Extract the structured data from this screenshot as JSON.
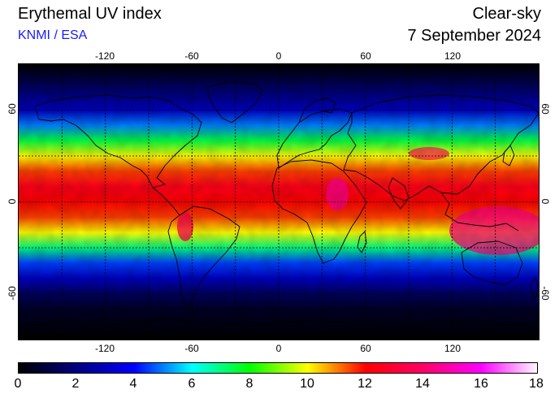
{
  "header": {
    "title": "Erythemal UV index",
    "subtitle": "KNMI / ESA",
    "mode": "Clear-sky",
    "date": "7 September 2024"
  },
  "map": {
    "projection": "equirectangular",
    "lon_range": [
      -180,
      180
    ],
    "lat_range": [
      -90,
      90
    ],
    "lon_ticks": [
      -120,
      -60,
      0,
      60,
      120
    ],
    "lat_ticks": [
      60,
      0,
      -60
    ],
    "grid": true,
    "grid_style": "dashed",
    "uv_profile_by_latitude": [
      {
        "lat": 90,
        "uv": 0
      },
      {
        "lat": 75,
        "uv": 1.5
      },
      {
        "lat": 60,
        "uv": 3
      },
      {
        "lat": 50,
        "uv": 5
      },
      {
        "lat": 40,
        "uv": 7.5
      },
      {
        "lat": 30,
        "uv": 10
      },
      {
        "lat": 20,
        "uv": 11.5
      },
      {
        "lat": 10,
        "uv": 12.5
      },
      {
        "lat": 0,
        "uv": 12
      },
      {
        "lat": -10,
        "uv": 11.5
      },
      {
        "lat": -20,
        "uv": 10
      },
      {
        "lat": -30,
        "uv": 7
      },
      {
        "lat": -40,
        "uv": 4.5
      },
      {
        "lat": -50,
        "uv": 3
      },
      {
        "lat": -60,
        "uv": 1.5
      },
      {
        "lat": -70,
        "uv": 0.6
      },
      {
        "lat": -90,
        "uv": 0
      }
    ]
  },
  "colorbar": {
    "min": 0,
    "max": 18,
    "labels": [
      "0",
      "2",
      "4",
      "6",
      "8",
      "10",
      "12",
      "14",
      "16",
      "18"
    ],
    "stops": [
      {
        "value": 0,
        "color": "#000000"
      },
      {
        "value": 2,
        "color": "#000080"
      },
      {
        "value": 4,
        "color": "#0000ff"
      },
      {
        "value": 6,
        "color": "#00ffff"
      },
      {
        "value": 8,
        "color": "#00ff00"
      },
      {
        "value": 10,
        "color": "#ffff00"
      },
      {
        "value": 12,
        "color": "#ff0000"
      },
      {
        "value": 14,
        "color": "#ff0066"
      },
      {
        "value": 16,
        "color": "#ff00ff"
      },
      {
        "value": 18,
        "color": "#ffffff"
      }
    ]
  }
}
